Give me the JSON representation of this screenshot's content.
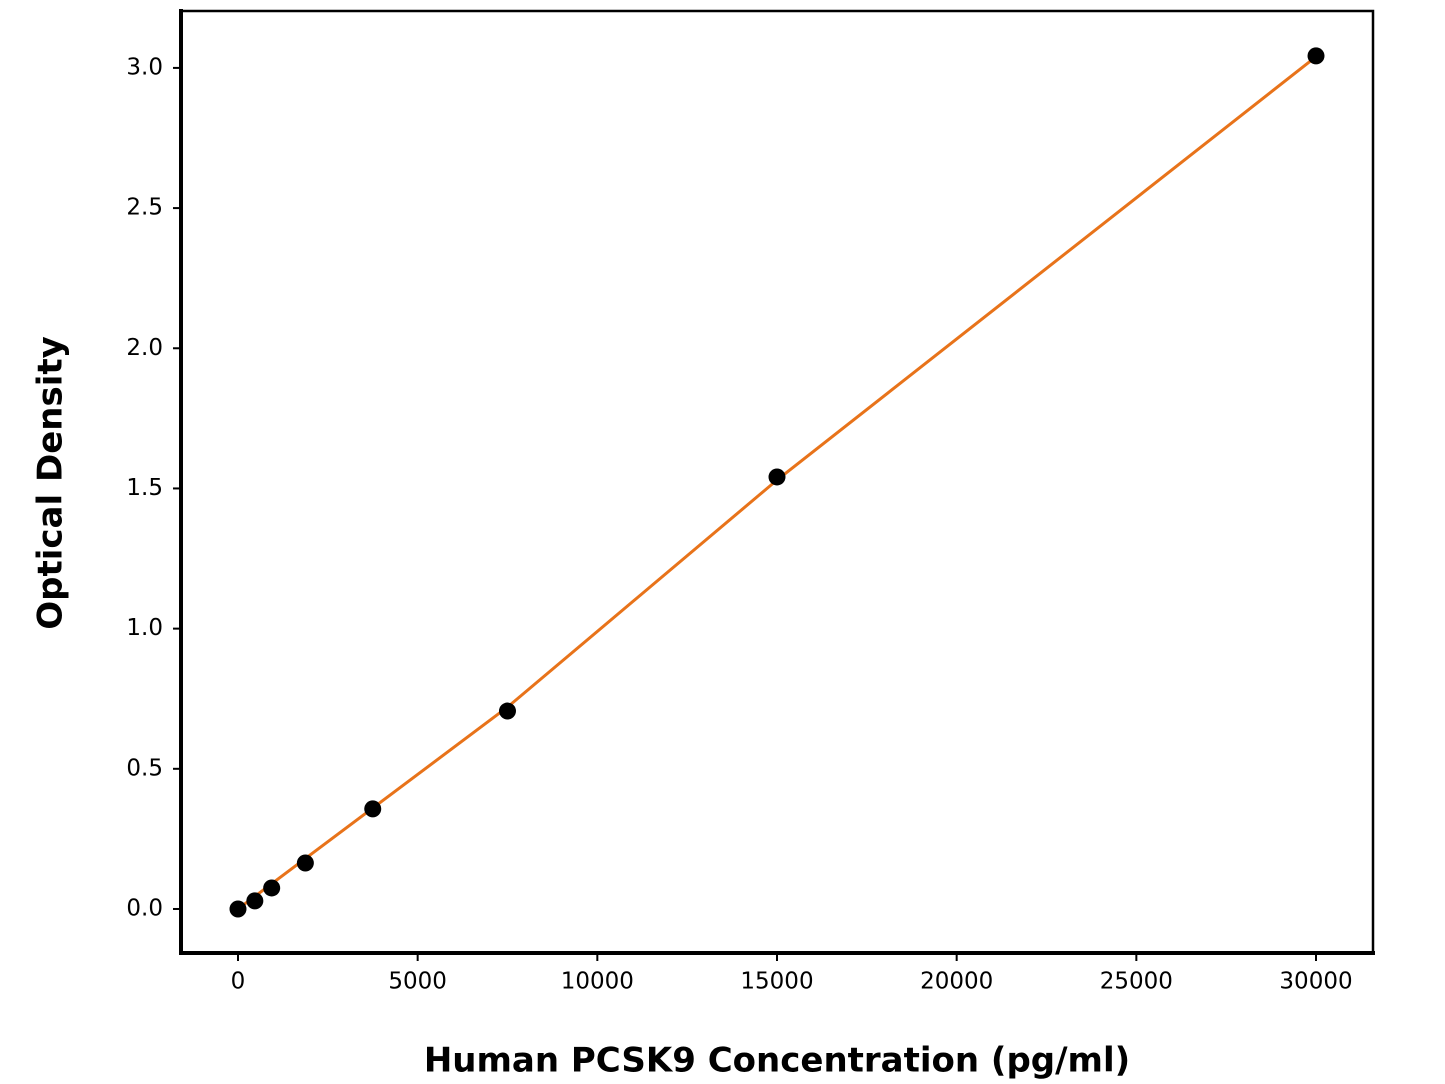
{
  "chart_data": {
    "type": "scatter",
    "x_label": "Human PCSK9 Concentration (pg/ml)",
    "y_label": "Optical Density",
    "x": [
      0,
      468.75,
      937.5,
      1875,
      3750,
      7500,
      15000,
      30000
    ],
    "values": [
      0.0,
      0.029,
      0.075,
      0.164,
      0.357,
      0.706,
      1.541,
      3.043
    ],
    "color": "#000000",
    "fit": {
      "x": [
        0,
        7500,
        15000,
        30000
      ],
      "values": [
        0.0,
        0.72,
        1.53,
        3.04
      ],
      "color": "#e8731a"
    },
    "xlim": [
      -1586,
      31586
    ],
    "ylim": [
      -0.157,
      3.203
    ],
    "xticks": [
      0,
      5000,
      10000,
      15000,
      20000,
      25000,
      30000
    ],
    "yticks": [
      {
        "value": 0,
        "label": "0.0"
      },
      0.5,
      {
        "value": 1,
        "label": "1.0"
      },
      1.5,
      {
        "value": 2,
        "label": "2.0"
      },
      2.5,
      {
        "value": 3,
        "label": "3.0"
      }
    ],
    "grid": false
  }
}
